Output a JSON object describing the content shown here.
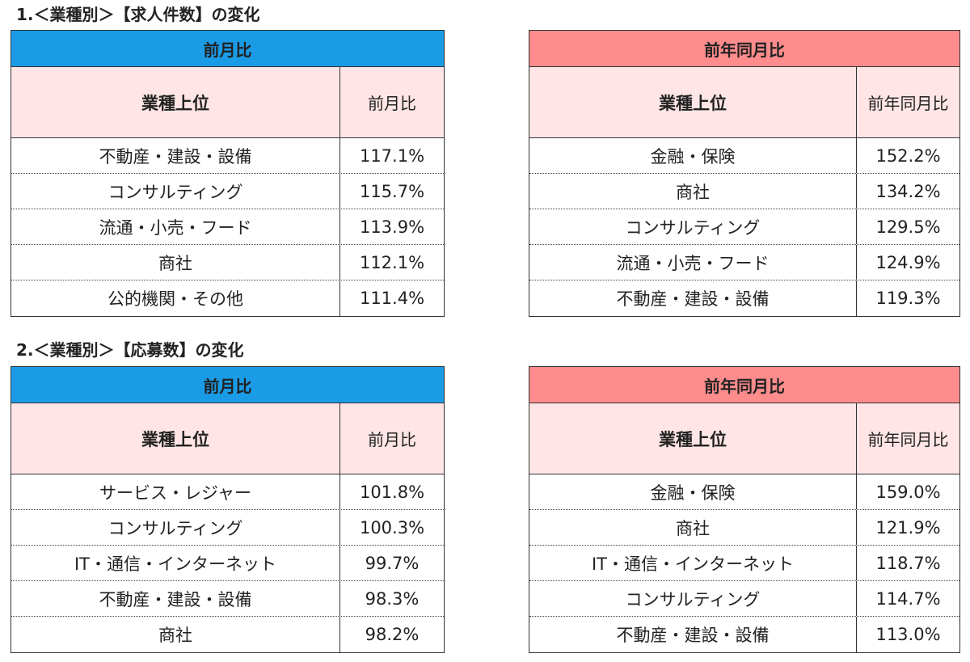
{
  "sections": [
    {
      "title": "1.＜業種別＞【求人件数】の変化",
      "mom": {
        "header": "前月比",
        "col1": "業種上位",
        "col2": "前月比",
        "rows": [
          {
            "industry": "不動産・建設・設備",
            "value": "117.1%"
          },
          {
            "industry": "コンサルティング",
            "value": "115.7%"
          },
          {
            "industry": "流通・小売・フード",
            "value": "113.9%"
          },
          {
            "industry": "商社",
            "value": "112.1%"
          },
          {
            "industry": "公的機関・その他",
            "value": "111.4%"
          }
        ]
      },
      "yoy": {
        "header": "前年同月比",
        "col1": "業種上位",
        "col2": "前年同月比",
        "rows": [
          {
            "industry": "金融・保険",
            "value": "152.2%"
          },
          {
            "industry": "商社",
            "value": "134.2%"
          },
          {
            "industry": "コンサルティング",
            "value": "129.5%"
          },
          {
            "industry": "流通・小売・フード",
            "value": "124.9%"
          },
          {
            "industry": "不動産・建設・設備",
            "value": "119.3%"
          }
        ]
      }
    },
    {
      "title": "2.＜業種別＞【応募数】の変化",
      "mom": {
        "header": "前月比",
        "col1": "業種上位",
        "col2": "前月比",
        "rows": [
          {
            "industry": "サービス・レジャー",
            "value": "101.8%"
          },
          {
            "industry": "コンサルティング",
            "value": "100.3%"
          },
          {
            "industry": "IT・通信・インターネット",
            "value": "99.7%"
          },
          {
            "industry": "不動産・建設・設備",
            "value": "98.3%"
          },
          {
            "industry": "商社",
            "value": "98.2%"
          }
        ]
      },
      "yoy": {
        "header": "前年同月比",
        "col1": "業種上位",
        "col2": "前年同月比",
        "rows": [
          {
            "industry": "金融・保険",
            "value": "159.0%"
          },
          {
            "industry": "商社",
            "value": "121.9%"
          },
          {
            "industry": "IT・通信・インターネット",
            "value": "118.7%"
          },
          {
            "industry": "コンサルティング",
            "value": "114.7%"
          },
          {
            "industry": "不動産・建設・設備",
            "value": "113.0%"
          }
        ]
      }
    }
  ],
  "colors": {
    "mom_header": "#1a9be6",
    "yoy_header": "#ff8c8c",
    "column_header": "#ffe5e5"
  }
}
